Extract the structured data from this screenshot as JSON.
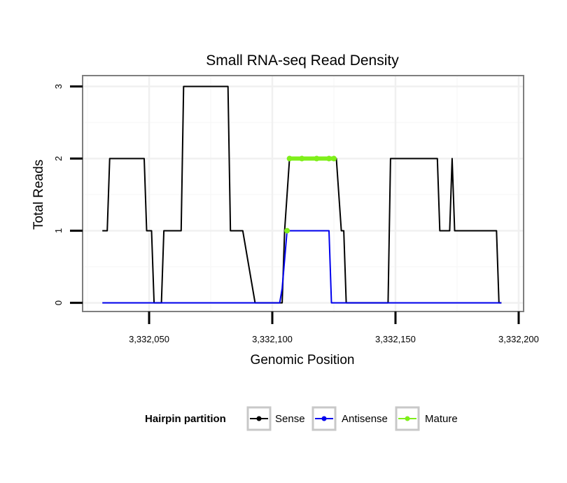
{
  "chart_data": {
    "type": "line",
    "title": "Small RNA-seq Read Density",
    "xlabel": "Genomic Position",
    "ylabel": "Total Reads",
    "xlim": [
      3332023,
      3332202
    ],
    "ylim": [
      -0.12,
      3.15
    ],
    "xticks": [
      3332050,
      3332100,
      3332150,
      3332200
    ],
    "xtick_labels": [
      "3,332,050",
      "3,332,100",
      "3,332,150",
      "3,332,200"
    ],
    "yticks": [
      0,
      1,
      2,
      3
    ],
    "ytick_labels": [
      "0",
      "1",
      "2",
      "3"
    ],
    "grid": true,
    "legend_position": "bottom",
    "legend_title": "Hairpin partition",
    "series": [
      {
        "name": "Sense",
        "color": "#000000",
        "x": [
          3332031,
          3332033,
          3332034,
          3332035,
          3332048,
          3332049,
          3332051,
          3332052,
          3332053,
          3332054,
          3332055,
          3332056,
          3332057,
          3332063,
          3332064,
          3332082,
          3332083,
          3332087,
          3332088,
          3332093,
          3332104,
          3332105,
          3332107,
          3332112,
          3332126,
          3332128,
          3332129,
          3332130,
          3332147,
          3332148,
          3332167,
          3332168,
          3332172,
          3332173,
          3332174,
          3332175,
          3332191,
          3332192,
          3332193
        ],
        "values": [
          1,
          1,
          2,
          2,
          2,
          1,
          1,
          0,
          0,
          0,
          0,
          1,
          1,
          1,
          3,
          3,
          1,
          1,
          1,
          0,
          0,
          1,
          2,
          2,
          2,
          1,
          1,
          0,
          0,
          2,
          2,
          1,
          1,
          2,
          1,
          1,
          1,
          0,
          0
        ]
      },
      {
        "name": "Antisense",
        "color": "#0000ee",
        "x": [
          3332031,
          3332103,
          3332104,
          3332106,
          3332123,
          3332124,
          3332193
        ],
        "values": [
          0,
          0,
          0.2,
          1,
          1,
          0,
          0
        ]
      },
      {
        "name": "Mature",
        "color": "#7fef1a",
        "x": [
          3332107,
          3332112,
          3332118,
          3332123,
          3332125
        ],
        "values": [
          2,
          2,
          2,
          2,
          2
        ],
        "extra_point": {
          "x": 3332106,
          "y": 1
        }
      }
    ]
  }
}
